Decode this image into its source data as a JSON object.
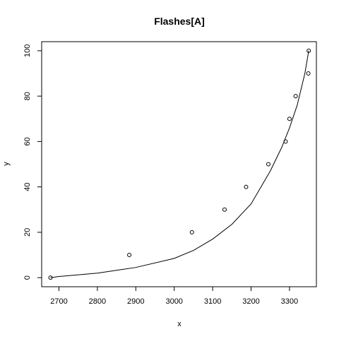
{
  "chart_data": {
    "type": "scatter",
    "title": "Flashes[A]",
    "xlabel": "x",
    "ylabel": "y",
    "xlim": [
      2655,
      3370
    ],
    "ylim": [
      -4,
      104
    ],
    "x_ticks": [
      2700,
      2800,
      2900,
      3000,
      3100,
      3200,
      3300
    ],
    "y_ticks": [
      0,
      20,
      40,
      60,
      80,
      100
    ],
    "points": [
      {
        "x": 2678,
        "y": 0
      },
      {
        "x": 2883,
        "y": 10
      },
      {
        "x": 3046,
        "y": 20
      },
      {
        "x": 3131,
        "y": 30
      },
      {
        "x": 3187,
        "y": 40
      },
      {
        "x": 3245,
        "y": 50
      },
      {
        "x": 3290,
        "y": 60
      },
      {
        "x": 3300,
        "y": 70
      },
      {
        "x": 3316,
        "y": 80
      },
      {
        "x": 3349,
        "y": 90
      },
      {
        "x": 3350,
        "y": 100
      }
    ],
    "fitted_curve": {
      "x": [
        2678,
        2700,
        2800,
        2900,
        3000,
        3050,
        3100,
        3150,
        3200,
        3250,
        3280,
        3300,
        3320,
        3340,
        3350
      ],
      "y": [
        0,
        0.5,
        2.0,
        4.5,
        8.5,
        12.0,
        17.0,
        23.5,
        32.5,
        47.0,
        57.5,
        66.0,
        76.0,
        90.0,
        100.0
      ]
    },
    "grid": false,
    "legend": "none"
  }
}
